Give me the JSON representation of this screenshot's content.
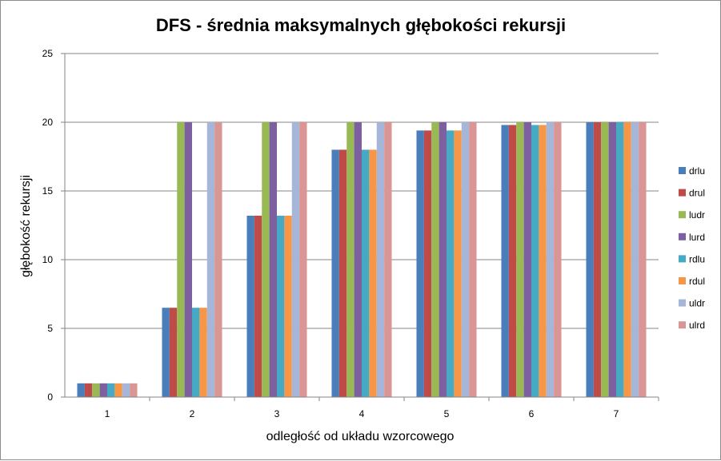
{
  "chart_data": {
    "type": "bar",
    "title": "DFS - średnia maksymalnych głębokości rekursji",
    "xlabel": "odległość od układu wzorcowego",
    "ylabel": "głębokość rekursji",
    "categories": [
      "1",
      "2",
      "3",
      "4",
      "5",
      "6",
      "7"
    ],
    "ylim": [
      0,
      25
    ],
    "yticks": [
      0,
      5,
      10,
      15,
      20,
      25
    ],
    "grid": true,
    "legend_position": "right",
    "series": [
      {
        "name": "drlu",
        "color": "#4a7ebb",
        "values": [
          1,
          6.5,
          13.2,
          18,
          19.4,
          19.8,
          20
        ]
      },
      {
        "name": "drul",
        "color": "#be4b48",
        "values": [
          1,
          6.5,
          13.2,
          18,
          19.4,
          19.8,
          20
        ]
      },
      {
        "name": "ludr",
        "color": "#98b954",
        "values": [
          1,
          20,
          20,
          20,
          20,
          20,
          20
        ]
      },
      {
        "name": "lurd",
        "color": "#7d60a0",
        "values": [
          1,
          20,
          20,
          20,
          20,
          20,
          20
        ]
      },
      {
        "name": "rdlu",
        "color": "#46aac5",
        "values": [
          1,
          6.5,
          13.2,
          18,
          19.4,
          19.8,
          20
        ]
      },
      {
        "name": "rdul",
        "color": "#f79646",
        "values": [
          1,
          6.5,
          13.2,
          18,
          19.4,
          19.8,
          20
        ]
      },
      {
        "name": "uldr",
        "color": "#a5b6d9",
        "values": [
          1,
          20,
          20,
          20,
          20,
          20,
          20
        ]
      },
      {
        "name": "ulrd",
        "color": "#d99694",
        "values": [
          1,
          20,
          20,
          20,
          20,
          20,
          20
        ]
      }
    ]
  }
}
